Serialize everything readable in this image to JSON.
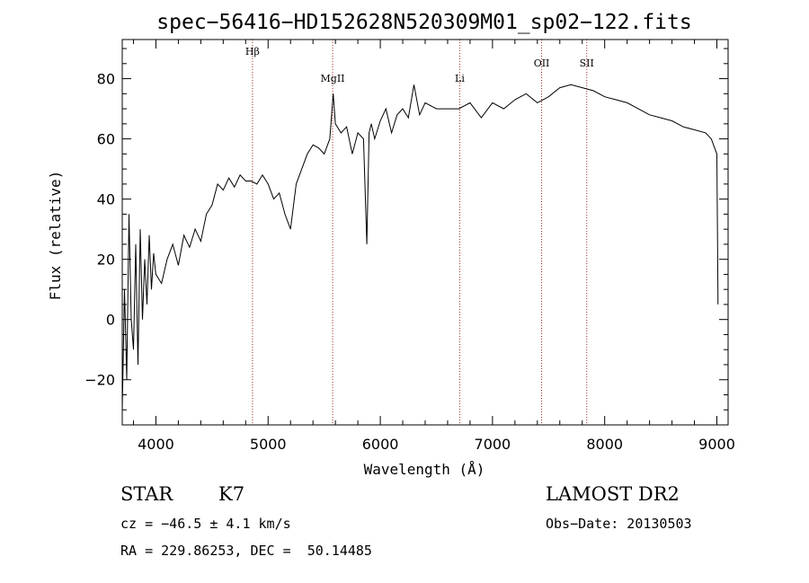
{
  "chart_data": {
    "type": "line",
    "title": "spec−56416−HD152628N520309M01_sp02−122.fits",
    "xlabel": "Wavelength (Å)",
    "ylabel": "Flux (relative)",
    "xlim": [
      3700,
      9100
    ],
    "ylim": [
      -35,
      93
    ],
    "xticks": [
      4000,
      5000,
      6000,
      7000,
      8000,
      9000
    ],
    "yticks": [
      -20,
      0,
      20,
      40,
      60,
      80
    ],
    "ytick_labels": [
      "−20",
      "0",
      "20",
      "40",
      "60",
      "80"
    ],
    "grid": false,
    "series": [
      {
        "x": [
          3700,
          3720,
          3740,
          3760,
          3780,
          3800,
          3820,
          3840,
          3860,
          3880,
          3900,
          3920,
          3940,
          3960,
          3980,
          4000,
          4050,
          4100,
          4150,
          4200,
          4250,
          4300,
          4350,
          4400,
          4450,
          4500,
          4550,
          4600,
          4650,
          4700,
          4750,
          4800,
          4850,
          4900,
          4950,
          5000,
          5050,
          5100,
          5150,
          5200,
          5250,
          5300,
          5350,
          5400,
          5450,
          5500,
          5550,
          5580,
          5600,
          5650,
          5700,
          5750,
          5800,
          5850,
          5880,
          5900,
          5920,
          5950,
          6000,
          6050,
          6100,
          6150,
          6200,
          6250,
          6300,
          6350,
          6400,
          6500,
          6600,
          6700,
          6800,
          6900,
          7000,
          7100,
          7200,
          7300,
          7400,
          7500,
          7600,
          7700,
          7800,
          7900,
          8000,
          8100,
          8200,
          8300,
          8400,
          8500,
          8600,
          8700,
          8800,
          8900,
          8950,
          9000,
          9010
        ],
        "y": [
          -30,
          10,
          -20,
          35,
          0,
          -10,
          25,
          -15,
          30,
          0,
          20,
          5,
          28,
          10,
          22,
          15,
          12,
          20,
          25,
          18,
          28,
          24,
          30,
          26,
          35,
          38,
          45,
          43,
          47,
          44,
          48,
          46,
          46,
          45,
          48,
          45,
          40,
          42,
          35,
          30,
          45,
          50,
          55,
          58,
          57,
          55,
          60,
          75,
          65,
          62,
          64,
          55,
          62,
          60,
          25,
          62,
          65,
          60,
          66,
          70,
          62,
          68,
          70,
          67,
          78,
          68,
          72,
          70,
          70,
          70,
          72,
          67,
          72,
          70,
          73,
          75,
          72,
          74,
          77,
          78,
          77,
          76,
          74,
          73,
          72,
          70,
          68,
          67,
          66,
          64,
          63,
          62,
          60,
          55,
          5
        ]
      }
    ],
    "annotations": [
      {
        "label": "Hβ",
        "x": 4861,
        "y": 88
      },
      {
        "label": "MgII",
        "x": 5575,
        "y": 79
      },
      {
        "label": "Li",
        "x": 6708,
        "y": 79
      },
      {
        "label": "OII",
        "x": 7438,
        "y": 84
      },
      {
        "label": "SII",
        "x": 7840,
        "y": 84
      }
    ]
  },
  "info": {
    "object_class": "STAR",
    "subclass": "K7",
    "survey": "LAMOST DR2",
    "cz": "cz = −46.5 ± 4.1 km/s",
    "obs_date": "Obs−Date: 20130503",
    "coords": "RA = 229.86253, DEC =  50.14485"
  },
  "colors": {
    "spectrum": "#000000",
    "line_marker": "#a52a2a"
  }
}
